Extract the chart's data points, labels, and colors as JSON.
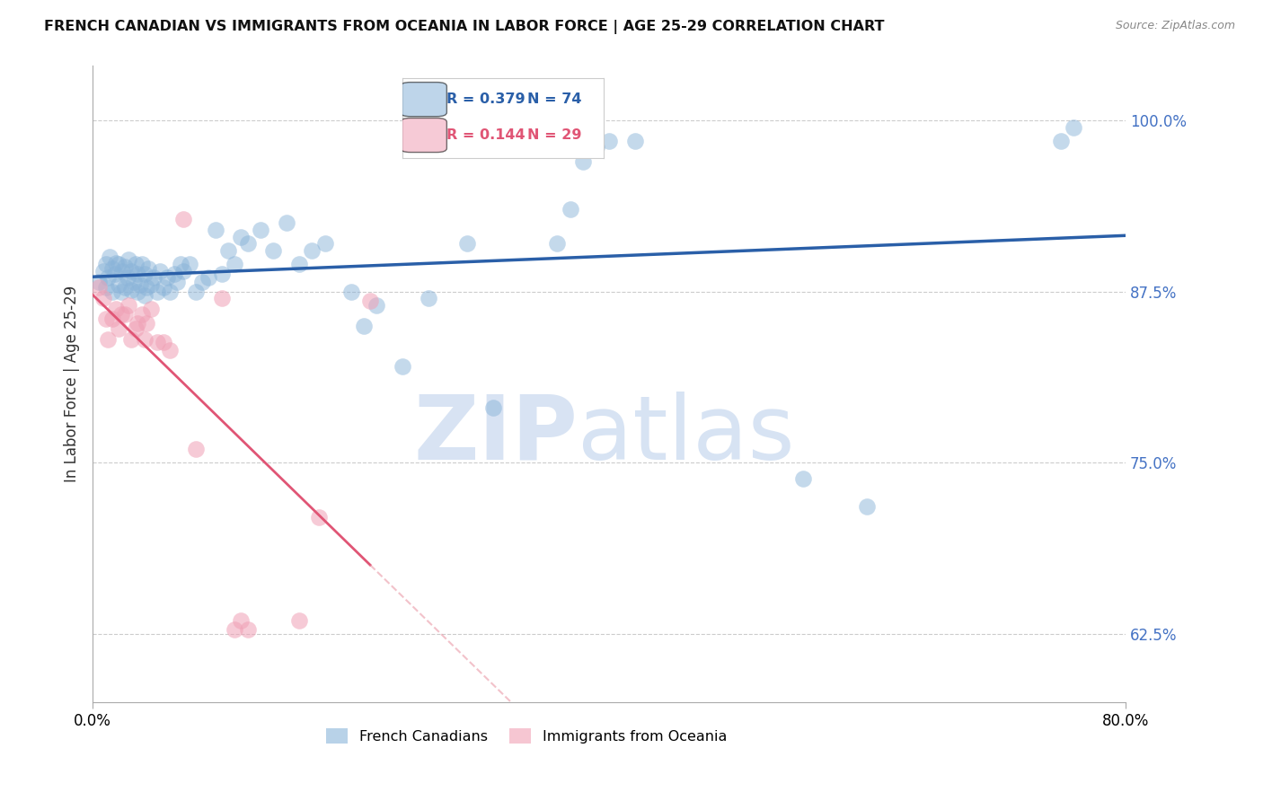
{
  "title": "FRENCH CANADIAN VS IMMIGRANTS FROM OCEANIA IN LABOR FORCE | AGE 25-29 CORRELATION CHART",
  "source": "Source: ZipAtlas.com",
  "ylabel": "In Labor Force | Age 25-29",
  "ytick_labels": [
    "62.5%",
    "75.0%",
    "87.5%",
    "100.0%"
  ],
  "ytick_values": [
    0.625,
    0.75,
    0.875,
    1.0
  ],
  "xlim": [
    0.0,
    0.8
  ],
  "ylim": [
    0.575,
    1.04
  ],
  "legend_r_blue": "0.379",
  "legend_n_blue": "74",
  "legend_r_pink": "0.144",
  "legend_n_pink": "29",
  "blue_color": "#8ab4d9",
  "pink_color": "#f0a0b5",
  "line_blue": "#2a5fa8",
  "line_pink": "#e05575",
  "line_pink_dash": "#e8909f",
  "background_color": "#ffffff",
  "watermark_zip": "ZIP",
  "watermark_atlas": "atlas",
  "blue_scatter_x": [
    0.005,
    0.008,
    0.01,
    0.01,
    0.012,
    0.013,
    0.015,
    0.015,
    0.017,
    0.018,
    0.02,
    0.02,
    0.022,
    0.023,
    0.025,
    0.025,
    0.027,
    0.028,
    0.03,
    0.03,
    0.032,
    0.033,
    0.035,
    0.035,
    0.037,
    0.038,
    0.04,
    0.04,
    0.042,
    0.043,
    0.045,
    0.047,
    0.05,
    0.052,
    0.055,
    0.058,
    0.06,
    0.063,
    0.065,
    0.068,
    0.07,
    0.075,
    0.08,
    0.085,
    0.09,
    0.095,
    0.1,
    0.105,
    0.11,
    0.115,
    0.12,
    0.13,
    0.14,
    0.15,
    0.16,
    0.17,
    0.18,
    0.2,
    0.21,
    0.22,
    0.24,
    0.26,
    0.29,
    0.31,
    0.36,
    0.37,
    0.38,
    0.39,
    0.4,
    0.42,
    0.55,
    0.6,
    0.75,
    0.76
  ],
  "blue_scatter_y": [
    0.882,
    0.89,
    0.878,
    0.895,
    0.885,
    0.9,
    0.875,
    0.892,
    0.888,
    0.896,
    0.88,
    0.895,
    0.875,
    0.89,
    0.878,
    0.893,
    0.885,
    0.898,
    0.876,
    0.89,
    0.882,
    0.895,
    0.875,
    0.888,
    0.88,
    0.895,
    0.872,
    0.888,
    0.878,
    0.892,
    0.88,
    0.885,
    0.875,
    0.89,
    0.878,
    0.885,
    0.875,
    0.888,
    0.882,
    0.895,
    0.89,
    0.895,
    0.875,
    0.882,
    0.885,
    0.92,
    0.888,
    0.905,
    0.895,
    0.915,
    0.91,
    0.92,
    0.905,
    0.925,
    0.895,
    0.905,
    0.91,
    0.875,
    0.85,
    0.865,
    0.82,
    0.87,
    0.91,
    0.79,
    0.91,
    0.935,
    0.97,
    0.98,
    0.985,
    0.985,
    0.738,
    0.718,
    0.985,
    0.995
  ],
  "pink_scatter_x": [
    0.005,
    0.008,
    0.01,
    0.012,
    0.015,
    0.018,
    0.02,
    0.022,
    0.025,
    0.028,
    0.03,
    0.033,
    0.035,
    0.038,
    0.04,
    0.042,
    0.045,
    0.05,
    0.055,
    0.06,
    0.07,
    0.08,
    0.1,
    0.11,
    0.115,
    0.12,
    0.16,
    0.175,
    0.215
  ],
  "pink_scatter_y": [
    0.878,
    0.87,
    0.855,
    0.84,
    0.855,
    0.862,
    0.848,
    0.858,
    0.858,
    0.865,
    0.84,
    0.848,
    0.852,
    0.858,
    0.84,
    0.852,
    0.862,
    0.838,
    0.838,
    0.832,
    0.928,
    0.76,
    0.87,
    0.628,
    0.635,
    0.628,
    0.635,
    0.71,
    0.868
  ]
}
